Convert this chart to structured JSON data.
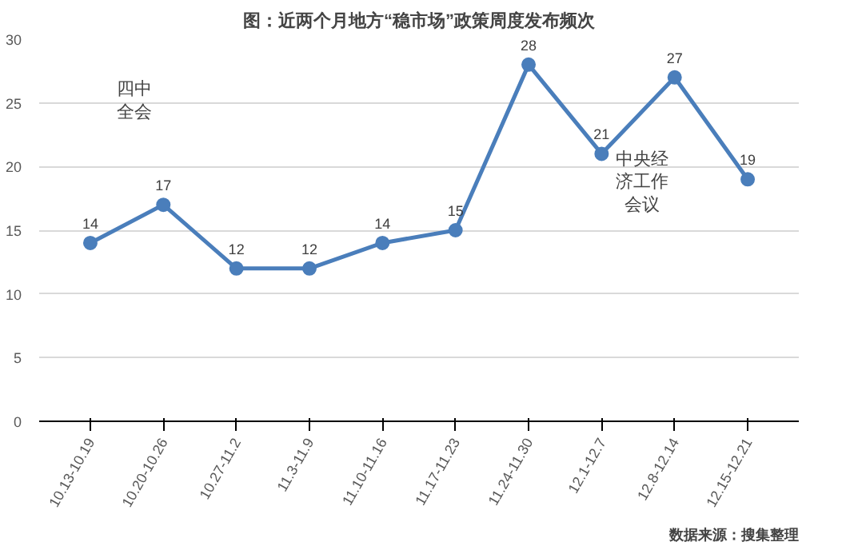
{
  "chart_data": {
    "type": "line",
    "title": "图：近两个月地方“稳市场”政策周度发布频次",
    "categories": [
      "10.13-10.19",
      "10.20-10.26",
      "10.27-11.2",
      "11.3-11.9",
      "11.10-11.16",
      "11.17-11.23",
      "11.24-11.30",
      "12.1-12.7",
      "12.8-12.14",
      "12.15-12.21"
    ],
    "values": [
      14,
      17,
      12,
      12,
      14,
      15,
      28,
      21,
      27,
      19
    ],
    "color": "#4a7ebb",
    "marker": "circle",
    "data_labels": true,
    "ylim": [
      0,
      30
    ],
    "yticks": [
      0,
      5,
      10,
      15,
      20,
      25,
      30
    ],
    "grid": "y",
    "annotations": [
      "四中全会",
      "中央经济工作会议",
      "数据来源：搜集整理"
    ]
  }
}
